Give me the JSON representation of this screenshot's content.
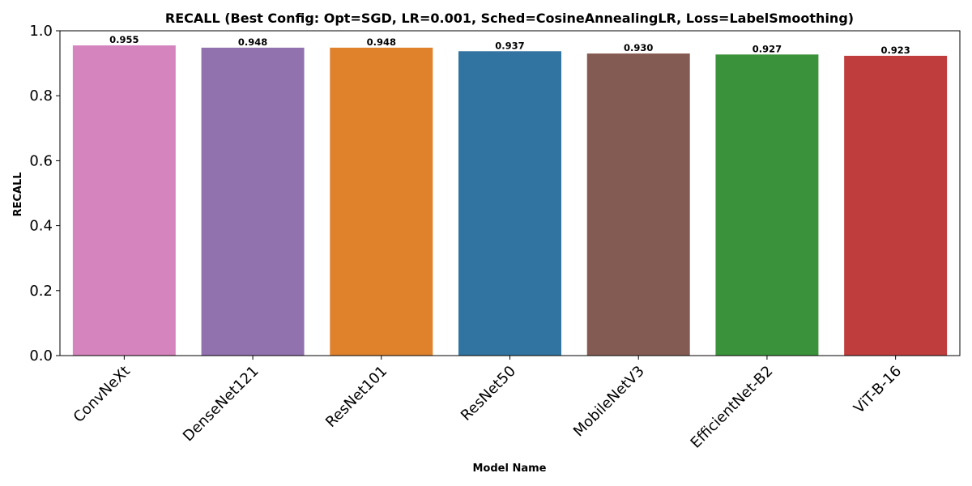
{
  "chart_data": {
    "type": "bar",
    "title": "RECALL (Best Config: Opt=SGD, LR=0.001, Sched=CosineAnnealingLR, Loss=LabelSmoothing)",
    "xlabel": "Model Name",
    "ylabel": "RECALL",
    "ylim": [
      0,
      1.0
    ],
    "yticks": [
      0.0,
      0.2,
      0.4,
      0.6,
      0.8,
      1.0
    ],
    "ytick_labels": [
      "0.0",
      "0.2",
      "0.4",
      "0.6",
      "0.8",
      "1.0"
    ],
    "categories": [
      "ConvNeXt",
      "DenseNet121",
      "ResNet101",
      "ResNet50",
      "MobileNetV3",
      "EfficientNet-B2",
      "ViT-B-16"
    ],
    "values": [
      0.955,
      0.948,
      0.948,
      0.937,
      0.93,
      0.927,
      0.923
    ],
    "value_labels": [
      "0.955",
      "0.948",
      "0.948",
      "0.937",
      "0.930",
      "0.927",
      "0.923"
    ],
    "colors": [
      "#d684bd",
      "#9271af",
      "#e0812c",
      "#3274a1",
      "#845b53",
      "#3a923a",
      "#c03d3e"
    ],
    "grid": false,
    "legend": "none"
  }
}
